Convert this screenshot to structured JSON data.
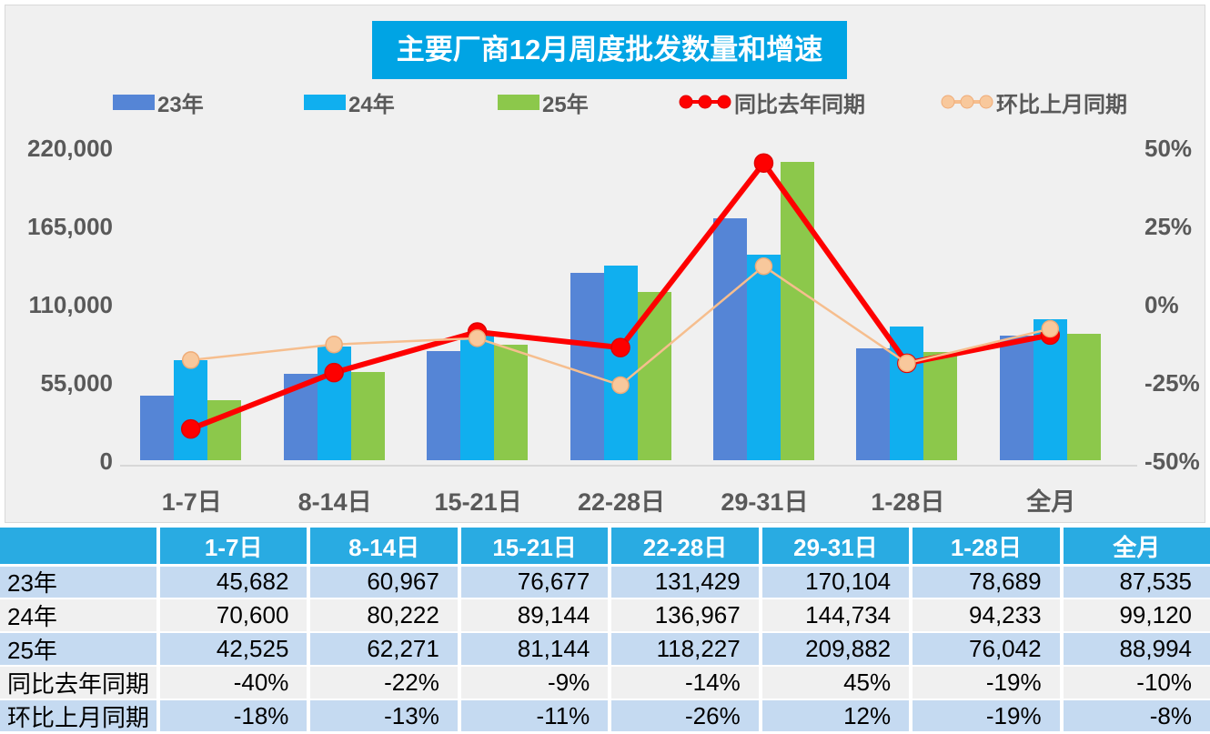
{
  "title": "主要厂商12月周度批发数量和增速",
  "legend": [
    {
      "label": "23年",
      "type": "bar",
      "color": "#5585D6"
    },
    {
      "label": "24年",
      "type": "bar",
      "color": "#10AFEF"
    },
    {
      "label": "25年",
      "type": "bar",
      "color": "#8CC84B"
    },
    {
      "label": "同比去年同期",
      "type": "line",
      "color": "#FE0000",
      "marker_fill": "#FE0000",
      "marker_stroke": "#E00000"
    },
    {
      "label": "环比上月同期",
      "type": "line",
      "color": "#F6BE8E",
      "marker_fill": "#F8C89C",
      "marker_stroke": "#EFAC78"
    }
  ],
  "chart_data": {
    "type": "bar",
    "categories": [
      "1-7日",
      "8-14日",
      "15-21日",
      "22-28日",
      "29-31日",
      "1-28日",
      "全月"
    ],
    "bar_series": [
      {
        "name": "23年",
        "color": "#5585D6",
        "values": [
          45682,
          60967,
          76677,
          131429,
          170104,
          78689,
          87535
        ]
      },
      {
        "name": "24年",
        "color": "#10AFEF",
        "values": [
          70600,
          80222,
          89144,
          136967,
          144734,
          94233,
          99120
        ]
      },
      {
        "name": "25年",
        "color": "#8CC84B",
        "values": [
          42525,
          62271,
          81144,
          118227,
          209882,
          76042,
          88994
        ]
      }
    ],
    "line_series": [
      {
        "name": "同比去年同期",
        "color": "#FE0000",
        "marker_fill": "#FE0000",
        "marker_stroke": "#E00000",
        "stroke_width": 6,
        "marker_r": 10,
        "values_pct": [
          -40,
          -22,
          -9,
          -14,
          45,
          -19,
          -10
        ]
      },
      {
        "name": "环比上月同期",
        "color": "#F6BE8E",
        "marker_fill": "#F8C89C",
        "marker_stroke": "#EFAC78",
        "stroke_width": 2.5,
        "marker_r": 9,
        "values_pct": [
          -18,
          -13,
          -11,
          -26,
          12,
          -19,
          -8
        ]
      }
    ],
    "left_axis": {
      "min": 0,
      "max": 220000,
      "ticks": [
        "0",
        "55,000",
        "110,000",
        "165,000",
        "220,000"
      ]
    },
    "right_axis": {
      "min": -50,
      "max": 50,
      "ticks": [
        "-50%",
        "-25%",
        "0%",
        "25%",
        "50%"
      ]
    },
    "grid": false,
    "legend_position": "top",
    "title": "主要厂商12月周度批发数量和增速"
  },
  "table": {
    "columns": [
      "",
      "1-7日",
      "8-14日",
      "15-21日",
      "22-28日",
      "29-31日",
      "1-28日",
      "全月"
    ],
    "rows": [
      {
        "label": "23年",
        "values": [
          "45,682",
          "60,967",
          "76,677",
          "131,429",
          "170,104",
          "78,689",
          "87,535"
        ]
      },
      {
        "label": "24年",
        "values": [
          "70,600",
          "80,222",
          "89,144",
          "136,967",
          "144,734",
          "94,233",
          "99,120"
        ]
      },
      {
        "label": "25年",
        "values": [
          "42,525",
          "62,271",
          "81,144",
          "118,227",
          "209,882",
          "76,042",
          "88,994"
        ]
      },
      {
        "label": "同比去年同期",
        "values": [
          "-40%",
          "-22%",
          "-9%",
          "-14%",
          "45%",
          "-19%",
          "-10%"
        ]
      },
      {
        "label": "环比上月同期",
        "values": [
          "-18%",
          "-13%",
          "-11%",
          "-26%",
          "12%",
          "-19%",
          "-8%"
        ]
      }
    ]
  },
  "colors": {
    "title_bg": "#00A4E4",
    "title_text": "#FFFFFF",
    "table_header_bg": "#29ABE2",
    "row_alt_blue": "#C5DAF1",
    "row_alt_gray": "#F0F0F0",
    "axis_text": "#595959",
    "panel_bg": "#F0F0F0"
  }
}
